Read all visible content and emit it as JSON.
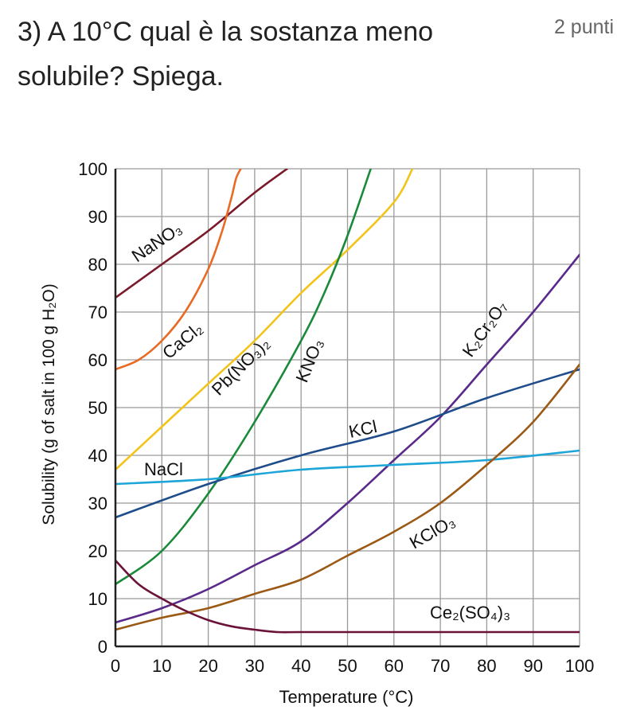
{
  "question": {
    "text": "3) A 10°C qual è la sostanza meno solubile? Spiega.",
    "points": "2 punti"
  },
  "chart_data": {
    "type": "line",
    "xlabel": "Temperature (°C)",
    "ylabel": "Solubility (g of salt in 100 g H₂O)",
    "xlim": [
      0,
      100
    ],
    "ylim": [
      0,
      100
    ],
    "x_ticks": [
      0,
      10,
      20,
      30,
      40,
      50,
      60,
      70,
      80,
      90,
      100
    ],
    "y_ticks": [
      0,
      10,
      20,
      30,
      40,
      50,
      60,
      70,
      80,
      90,
      100
    ],
    "grid": true,
    "series": [
      {
        "name": "NaNO₃",
        "color": "#7a1a2a",
        "x": [
          0,
          10,
          20,
          30,
          37
        ],
        "y": [
          73,
          80,
          87,
          95,
          100
        ]
      },
      {
        "name": "CaCl₂",
        "color": "#e86a24",
        "x": [
          0,
          5,
          10,
          15,
          20,
          23,
          25,
          26,
          27
        ],
        "y": [
          58,
          60,
          64,
          70,
          79,
          87,
          94,
          98,
          100
        ]
      },
      {
        "name": "Pb(NO₃)₂",
        "color": "#f2c41a",
        "x": [
          0,
          10,
          20,
          30,
          40,
          50,
          60,
          64
        ],
        "y": [
          37,
          46,
          55,
          64,
          74,
          83,
          93,
          100
        ]
      },
      {
        "name": "KNO₃",
        "color": "#1a8a3a",
        "x": [
          0,
          10,
          20,
          30,
          40,
          45,
          50,
          55
        ],
        "y": [
          13,
          20,
          32,
          47,
          64,
          74,
          86,
          100
        ]
      },
      {
        "name": "K₂Cr₂O₇",
        "color": "#5a2a8a",
        "x": [
          0,
          10,
          20,
          30,
          40,
          50,
          60,
          70,
          80,
          90,
          100
        ],
        "y": [
          5,
          8,
          12,
          17,
          22,
          30,
          39,
          48,
          59,
          70,
          82
        ]
      },
      {
        "name": "KCl",
        "color": "#1f4c8a",
        "x": [
          0,
          20,
          40,
          60,
          80,
          100
        ],
        "y": [
          27,
          34,
          40,
          45,
          52,
          58
        ]
      },
      {
        "name": "NaCl",
        "color": "#1ea5d8",
        "x": [
          0,
          20,
          40,
          60,
          80,
          100
        ],
        "y": [
          34,
          35,
          37,
          38,
          39,
          41
        ]
      },
      {
        "name": "KClO₃",
        "color": "#9a5a16",
        "x": [
          0,
          10,
          20,
          30,
          40,
          50,
          60,
          70,
          80,
          90,
          100
        ],
        "y": [
          3.5,
          6,
          8,
          11,
          14,
          19,
          24,
          30,
          38,
          47,
          59
        ]
      },
      {
        "name": "Ce₂(SO₄)₃",
        "color": "#6a1238",
        "x": [
          0,
          5,
          10,
          15,
          20,
          25,
          30,
          35,
          40,
          60,
          80,
          100
        ],
        "y": [
          18,
          13,
          10,
          7.5,
          5.5,
          4.2,
          3.5,
          3,
          3,
          3,
          3,
          3
        ]
      }
    ]
  }
}
